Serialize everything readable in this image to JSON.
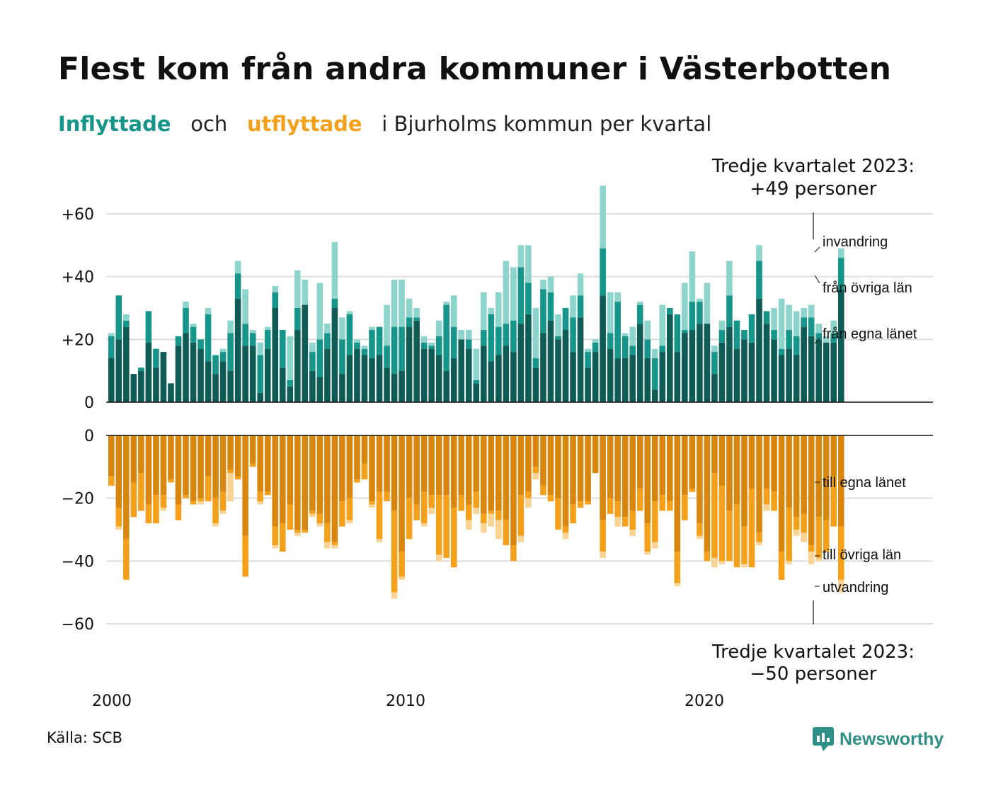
{
  "title": "Flest kom från andra kommuner i Västerbotten",
  "subtitle": {
    "in_word": "Inflyttade",
    "and_word": "och",
    "out_word": "utflyttade",
    "rest": "i Bjurholms  kommun  per  kvartal"
  },
  "source": "Källa: SCB",
  "brand": "Newsworthy",
  "colors": {
    "in_county": "#0e5c55",
    "in_other": "#16968a",
    "in_immig": "#8dd5cc",
    "out_county": "#d9860f",
    "out_other": "#f5a01a",
    "out_emig": "#f9d393"
  },
  "chart_data": {
    "type": "bar",
    "stacked": true,
    "x_start": "2000 Q1",
    "x_end": "2023 Q3",
    "x_ticks": [
      "2000",
      "2010",
      "2020"
    ],
    "in_yticks": [
      "+60",
      "+40",
      "+20",
      "0"
    ],
    "in_ytick_values": [
      60,
      40,
      20,
      0
    ],
    "out_yticks": [
      "0",
      "−20",
      "−40",
      "−60"
    ],
    "out_ytick_values": [
      0,
      -20,
      -40,
      -60
    ],
    "in_ylim": [
      0,
      60
    ],
    "out_ylim": [
      -60,
      0
    ],
    "grid": true,
    "inflow_series": [
      {
        "name": "från egna länet",
        "values": [
          14,
          20,
          24,
          9,
          10,
          19,
          11,
          16,
          6,
          18,
          22,
          19,
          17,
          13,
          9,
          13,
          10,
          33,
          18,
          18,
          3,
          17,
          30,
          11,
          5,
          23,
          31,
          10,
          8,
          17,
          30,
          9,
          15,
          17,
          15,
          14,
          15,
          11,
          9,
          10,
          24,
          26,
          17,
          17,
          15,
          10,
          14,
          20,
          17,
          6,
          18,
          13,
          15,
          18,
          16,
          25,
          28,
          11,
          22,
          26,
          20,
          23,
          16,
          27,
          11,
          16,
          34,
          17,
          14,
          14,
          15,
          25,
          14,
          4,
          16,
          28,
          16,
          22,
          23,
          25,
          25,
          9,
          19,
          24,
          17,
          20,
          19,
          33,
          25,
          20,
          15,
          17,
          15,
          24,
          21,
          20,
          19,
          19,
          36
        ],
        "note": "approximate, quarterly 2000Q1–2023Q3 (some quarters omitted approximately)"
      },
      {
        "name": "från övriga län",
        "values": [
          7,
          14,
          2,
          0,
          1,
          10,
          6,
          0,
          0,
          3,
          8,
          5,
          3,
          15,
          6,
          3,
          12,
          8,
          7,
          4,
          12,
          6,
          5,
          12,
          2,
          7,
          0,
          6,
          12,
          5,
          3,
          11,
          13,
          2,
          2,
          9,
          9,
          7,
          15,
          14,
          3,
          1,
          2,
          1,
          6,
          21,
          10,
          0,
          3,
          1,
          5,
          15,
          9,
          7,
          10,
          18,
          10,
          3,
          14,
          9,
          1,
          7,
          11,
          7,
          5,
          3,
          15,
          5,
          18,
          7,
          3,
          6,
          6,
          10,
          2,
          2,
          12,
          1,
          9,
          7,
          0,
          7,
          4,
          10,
          9,
          3,
          9,
          12,
          4,
          3,
          2,
          6,
          6,
          3,
          6,
          2,
          0,
          3,
          10
        ],
        "note": "approximate"
      },
      {
        "name": "invandring",
        "values": [
          1,
          0,
          2,
          0,
          0,
          0,
          0,
          0,
          0,
          0,
          2,
          1,
          0,
          2,
          0,
          1,
          4,
          4,
          11,
          1,
          4,
          1,
          2,
          0,
          14,
          12,
          8,
          3,
          18,
          3,
          18,
          7,
          1,
          1,
          1,
          1,
          0,
          13,
          15,
          15,
          6,
          3,
          2,
          1,
          5,
          1,
          10,
          3,
          3,
          10,
          12,
          2,
          11,
          20,
          17,
          7,
          12,
          16,
          3,
          5,
          7,
          0,
          7,
          7,
          1,
          1,
          20,
          13,
          3,
          1,
          6,
          1,
          6,
          3,
          13,
          0,
          0,
          15,
          16,
          1,
          13,
          2,
          3,
          11,
          0,
          0,
          0,
          5,
          0,
          7,
          16,
          8,
          8,
          3,
          4,
          3,
          2,
          4,
          3
        ],
        "note": "approximate"
      }
    ],
    "outflow_series": [
      {
        "name": "till egna länet",
        "values": [
          -13,
          -23,
          -33,
          -15,
          -12,
          -22,
          -19,
          -19,
          -14,
          -22,
          -19,
          -21,
          -20,
          -13,
          -20,
          -18,
          -11,
          -13,
          -32,
          -9,
          -18,
          -18,
          -29,
          -28,
          -22,
          -30,
          -30,
          -24,
          -25,
          -28,
          -34,
          -21,
          -20,
          -14,
          -9,
          -21,
          -18,
          -18,
          -24,
          -37,
          -20,
          -22,
          -18,
          -19,
          -19,
          -19,
          -23,
          -19,
          -22,
          -18,
          -25,
          -24,
          -24,
          -27,
          -35,
          -19,
          -18,
          -10,
          -16,
          -19,
          -20,
          -29,
          -22,
          -21,
          -21,
          -12,
          -27,
          -20,
          -21,
          -26,
          -24,
          -17,
          -28,
          -21,
          -19,
          -21,
          -37,
          -19,
          -17,
          -28,
          -37,
          -12,
          -16,
          -24,
          -22,
          -29,
          -17,
          -31,
          -17,
          -18,
          -37,
          -23,
          -26,
          -25,
          -35,
          -26,
          -27,
          -13,
          -29
        ],
        "note": "approximate"
      },
      {
        "name": "till övriga län",
        "values": [
          -3,
          -6,
          -13,
          -11,
          -12,
          -6,
          -9,
          -4,
          -1,
          -5,
          -1,
          -1,
          -1,
          -8,
          -8,
          -6,
          -1,
          -1,
          -13,
          -1,
          -3,
          -1,
          -6,
          -9,
          -8,
          -1,
          -1,
          -1,
          -3,
          -6,
          -1,
          -8,
          -7,
          -1,
          -5,
          -1,
          -15,
          -3,
          -26,
          -8,
          -13,
          -5,
          -10,
          -4,
          -19,
          -20,
          -19,
          -5,
          -5,
          -5,
          -3,
          -1,
          -3,
          -8,
          -5,
          -13,
          -2,
          -2,
          -3,
          -2,
          -10,
          -2,
          -6,
          -2,
          -1,
          0,
          -10,
          -5,
          -5,
          -3,
          -6,
          -7,
          -9,
          -13,
          -5,
          -3,
          -10,
          -8,
          -1,
          -4,
          -3,
          -27,
          -24,
          -16,
          -20,
          -12,
          -25,
          -3,
          -5,
          -6,
          -9,
          -17,
          -4,
          -6,
          -2,
          -13,
          -10,
          -16,
          -17
        ],
        "note": "approximate"
      },
      {
        "name": "utvandring",
        "values": [
          0,
          -1,
          0,
          0,
          0,
          0,
          0,
          -1,
          0,
          0,
          0,
          0,
          -1,
          0,
          -1,
          -1,
          -9,
          0,
          0,
          0,
          -1,
          0,
          -1,
          0,
          0,
          -1,
          0,
          -1,
          -1,
          -2,
          -1,
          0,
          -1,
          0,
          0,
          -1,
          -1,
          0,
          -2,
          -1,
          0,
          0,
          -1,
          -2,
          -2,
          0,
          0,
          0,
          -3,
          -2,
          -3,
          -4,
          -6,
          0,
          0,
          -2,
          -3,
          -2,
          0,
          0,
          0,
          -2,
          0,
          0,
          0,
          0,
          -2,
          0,
          -3,
          0,
          -2,
          0,
          -1,
          -2,
          0,
          0,
          -1,
          0,
          0,
          -1,
          0,
          -3,
          -1,
          0,
          0,
          -1,
          0,
          -1,
          -2,
          0,
          0,
          -1,
          -2,
          -3,
          -4,
          -1,
          0,
          0,
          -4
        ],
        "note": "approximate"
      }
    ],
    "annotation_top": {
      "line1": "Tredje kvartalet 2023:",
      "line2": "+49 personer"
    },
    "annotation_bottom": {
      "line1": "Tredje kvartalet 2023:",
      "line2": "−50 personer"
    },
    "in_labels": [
      "invandring",
      "från övriga län",
      "från egna länet"
    ],
    "out_labels": [
      "till egna länet",
      "till övriga län",
      "utvandring"
    ]
  }
}
